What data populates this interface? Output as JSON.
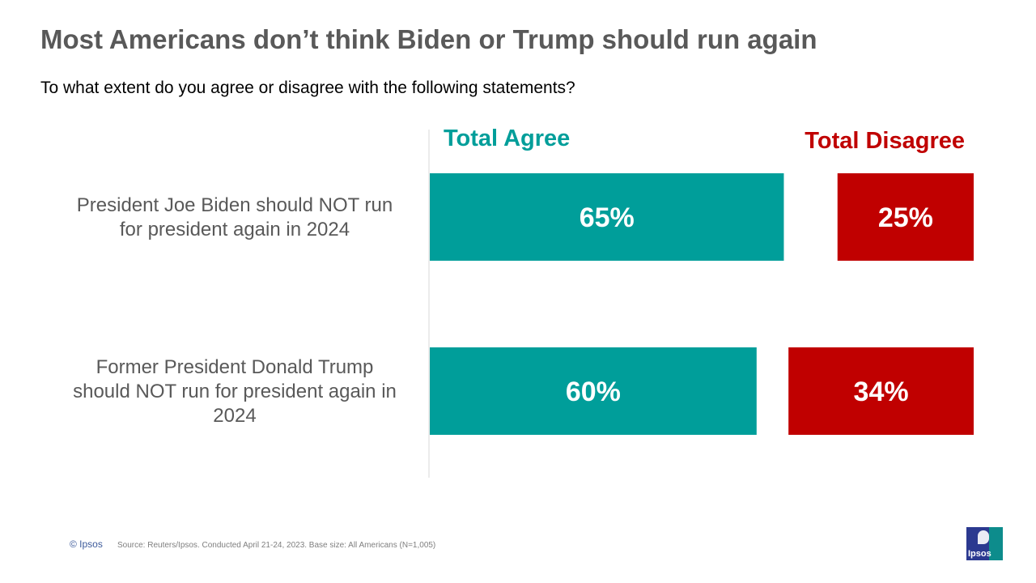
{
  "title": "Most Americans don’t think Biden or Trump should run again",
  "subtitle": "To what extent do you agree or disagree with the following statements?",
  "colors": {
    "agree": "#009e9a",
    "disagree": "#c00000",
    "label": "#595959"
  },
  "chart_data": {
    "type": "bar",
    "orientation": "horizontal",
    "stacked": false,
    "categories": [
      [
        "President Joe Biden should NOT run",
        "for president again in 2024"
      ],
      [
        "Former President Donald Trump",
        "should NOT run for president again in",
        "2024"
      ]
    ],
    "series": [
      {
        "name": "Total Agree",
        "values": [
          65,
          60
        ],
        "labels": [
          "65%",
          "60%"
        ]
      },
      {
        "name": "Total Disagree",
        "values": [
          25,
          34
        ],
        "labels": [
          "25%",
          "34%"
        ]
      }
    ],
    "xlim": [
      0,
      100
    ],
    "legend": "top",
    "grid": false
  },
  "footer": {
    "copyright": "© Ipsos",
    "source": "Source: Reuters/Ipsos. Conducted April 21-24, 2023. Base size: All Americans (N=1,005)"
  },
  "logo": {
    "text": "Ipsos"
  }
}
